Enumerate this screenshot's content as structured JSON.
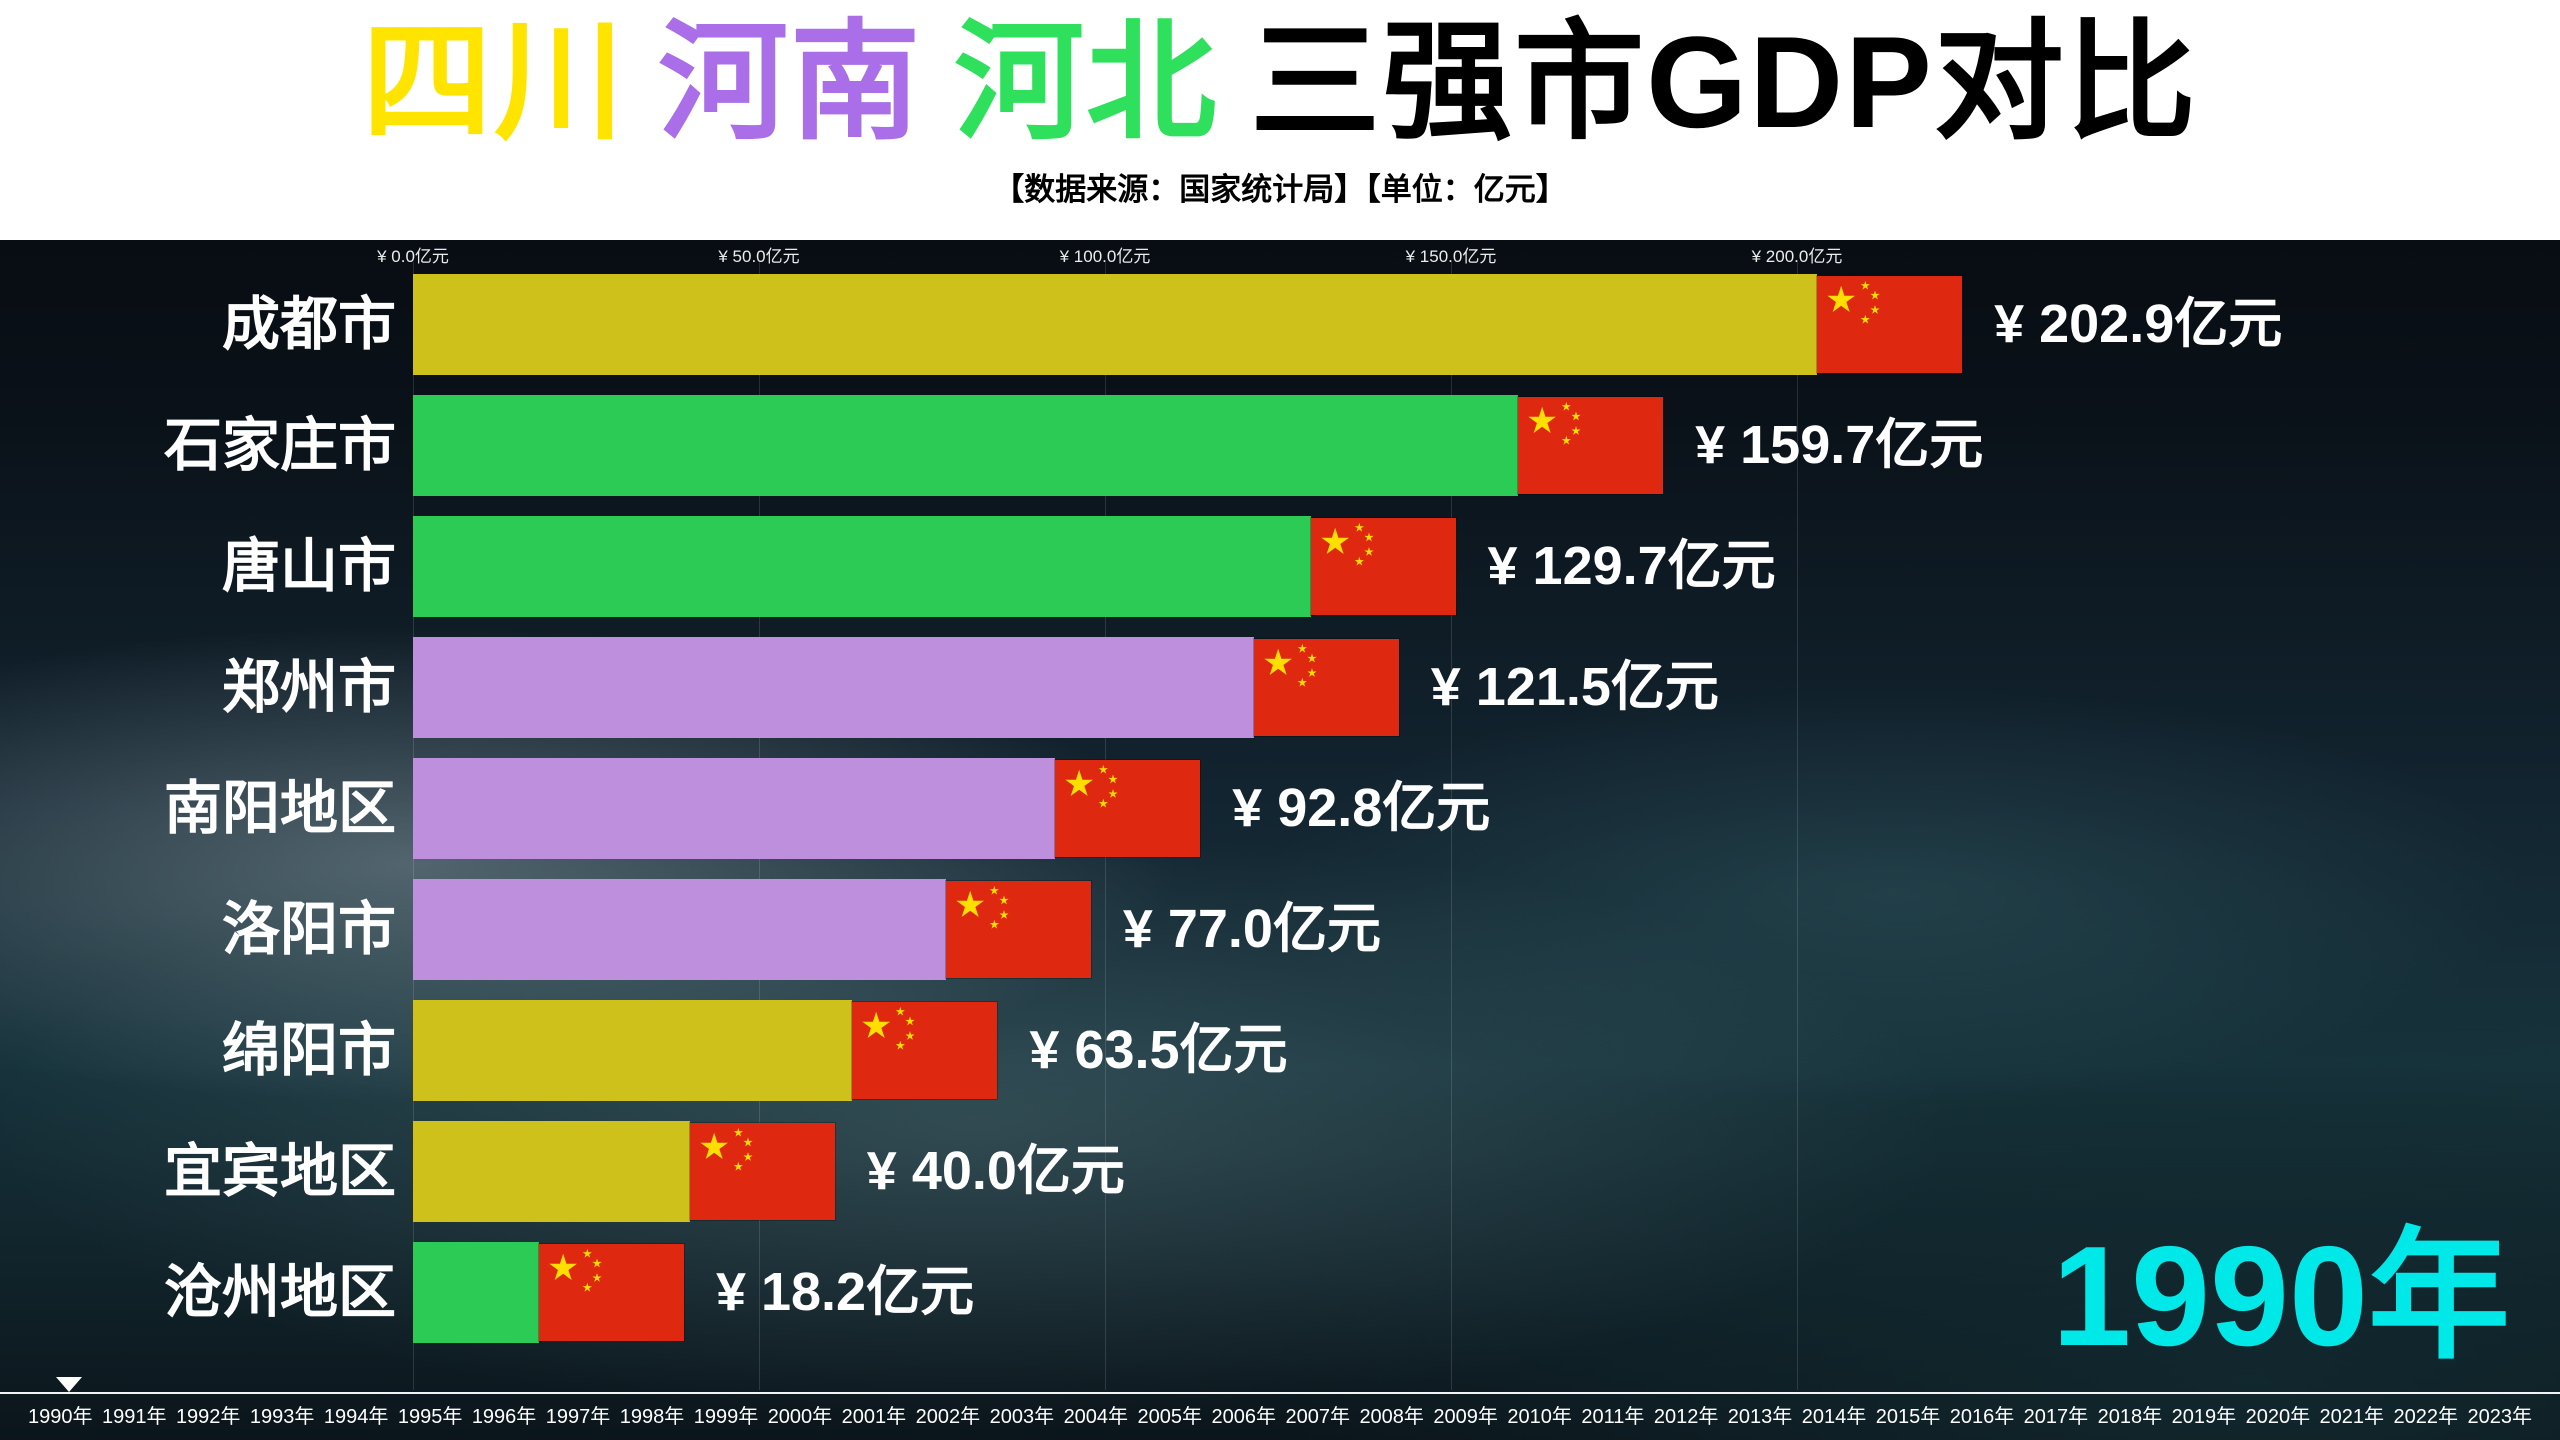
{
  "header": {
    "title_segments": [
      {
        "text": "四川",
        "color": "#ffe400"
      },
      {
        "text": "河南",
        "color": "#a96ee8"
      },
      {
        "text": "河北",
        "color": "#2ee05c"
      },
      {
        "text": "三强市GDP对比",
        "color": "#000000"
      }
    ],
    "subtitle": "【数据来源：国家统计局】【单位：亿元】"
  },
  "chart_data": {
    "type": "bar",
    "orientation": "horizontal",
    "title": "四川 河南 河北 三强市GDP对比",
    "unit": "亿元",
    "grid": true,
    "axis": {
      "tick_labels": [
        "¥ 0.0亿元",
        "¥ 50.0亿元",
        "¥ 100.0亿元",
        "¥ 150.0亿元",
        "¥ 200.0亿元"
      ],
      "tick_values": [
        0,
        50,
        100,
        150,
        200
      ],
      "max": 200
    },
    "bars": [
      {
        "label": "成都市",
        "value": 202.9,
        "display": "¥ 202.9亿元",
        "color": "#cfc11c",
        "province": "四川"
      },
      {
        "label": "石家庄市",
        "value": 159.7,
        "display": "¥ 159.7亿元",
        "color": "#2bcb55",
        "province": "河北"
      },
      {
        "label": "唐山市",
        "value": 129.7,
        "display": "¥ 129.7亿元",
        "color": "#2bcb55",
        "province": "河北"
      },
      {
        "label": "郑州市",
        "value": 121.5,
        "display": "¥ 121.5亿元",
        "color": "#bd8fdd",
        "province": "河南"
      },
      {
        "label": "南阳地区",
        "value": 92.8,
        "display": "¥ 92.8亿元",
        "color": "#bd8fdd",
        "province": "河南"
      },
      {
        "label": "洛阳市",
        "value": 77.0,
        "display": "¥ 77.0亿元",
        "color": "#bd8fdd",
        "province": "河南"
      },
      {
        "label": "绵阳市",
        "value": 63.5,
        "display": "¥ 63.5亿元",
        "color": "#cfc11c",
        "province": "四川"
      },
      {
        "label": "宜宾地区",
        "value": 40.0,
        "display": "¥ 40.0亿元",
        "color": "#cfc11c",
        "province": "四川"
      },
      {
        "label": "沧州地区",
        "value": 18.2,
        "display": "¥ 18.2亿元",
        "color": "#2bcb55",
        "province": "河北"
      }
    ],
    "year_label": "1990年",
    "timeline_years": [
      "1990年",
      "1991年",
      "1992年",
      "1993年",
      "1994年",
      "1995年",
      "1996年",
      "1997年",
      "1998年",
      "1999年",
      "2000年",
      "2001年",
      "2002年",
      "2003年",
      "2004年",
      "2005年",
      "2006年",
      "2007年",
      "2008年",
      "2009年",
      "2010年",
      "2011年",
      "2012年",
      "2013年",
      "2014年",
      "2015年",
      "2016年",
      "2017年",
      "2018年",
      "2019年",
      "2020年",
      "2021年",
      "2022年",
      "2023年"
    ]
  },
  "colors": {
    "year_cyan": "#00e8e8",
    "flag_red": "#de2910",
    "flag_yellow": "#ffde00",
    "label_white": "#ffffff"
  }
}
